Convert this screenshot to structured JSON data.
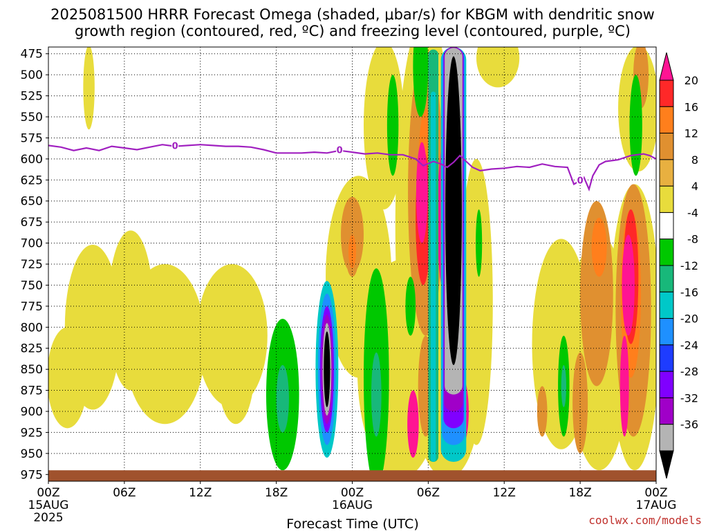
{
  "chart_data": {
    "type": "heatmap",
    "title_line1": "2025081500 HRRR Forecast Omega (shaded, μbar/s) for KBGM with dendritic snow",
    "title_line2": "growth region (contoured, red, ºC) and freezing level (contoured, purple, ºC)",
    "xlabel": "Forecast Time (UTC)",
    "credit": "coolwx.com/models",
    "y_axis": {
      "ticks": [
        475,
        500,
        525,
        550,
        575,
        600,
        625,
        650,
        675,
        700,
        725,
        750,
        775,
        800,
        825,
        850,
        875,
        900,
        925,
        950,
        975
      ],
      "range": [
        467,
        983
      ],
      "units": "hPa"
    },
    "x_axis": {
      "range_hours": [
        0,
        48
      ],
      "ticks": [
        {
          "hour": 0,
          "line1": "00Z",
          "line2": "15AUG",
          "line3": "2025"
        },
        {
          "hour": 6,
          "line1": "06Z"
        },
        {
          "hour": 12,
          "line1": "12Z"
        },
        {
          "hour": 18,
          "line1": "18Z"
        },
        {
          "hour": 24,
          "line1": "00Z",
          "line2": "16AUG"
        },
        {
          "hour": 30,
          "line1": "06Z"
        },
        {
          "hour": 36,
          "line1": "12Z"
        },
        {
          "hour": 42,
          "line1": "18Z"
        },
        {
          "hour": 48,
          "line1": "00Z",
          "line2": "17AUG"
        }
      ]
    },
    "colorbar": {
      "labels": [
        "20",
        "16",
        "12",
        "8",
        "4",
        "-4",
        "-8",
        "-12",
        "-16",
        "-20",
        "-24",
        "-28",
        "-32",
        "-36"
      ],
      "colors": [
        "#ff1493",
        "#ff2828",
        "#ff7f1c",
        "#e09030",
        "#e8b040",
        "#e8dc3c",
        "#ffffff",
        "#00c800",
        "#18b87a",
        "#00c8c8",
        "#1e90ff",
        "#1e3cff",
        "#8000ff",
        "#a000c8",
        "#b4b4b4",
        "#000000"
      ]
    },
    "freezing_level": {
      "label": "0",
      "label_hours": [
        10,
        23,
        42
      ],
      "points": [
        [
          0,
          584
        ],
        [
          1,
          586
        ],
        [
          2,
          590
        ],
        [
          3,
          587
        ],
        [
          4,
          590
        ],
        [
          5,
          585
        ],
        [
          6,
          587
        ],
        [
          7,
          589
        ],
        [
          8,
          586
        ],
        [
          9,
          583
        ],
        [
          10,
          585
        ],
        [
          11,
          584
        ],
        [
          12,
          583
        ],
        [
          13,
          584
        ],
        [
          14,
          585
        ],
        [
          15,
          585
        ],
        [
          16,
          586
        ],
        [
          17,
          589
        ],
        [
          18,
          593
        ],
        [
          19,
          593
        ],
        [
          20,
          593
        ],
        [
          21,
          592
        ],
        [
          22,
          593
        ],
        [
          23,
          590
        ],
        [
          24,
          592
        ],
        [
          25,
          594
        ],
        [
          26,
          593
        ],
        [
          27,
          595
        ],
        [
          28,
          595
        ],
        [
          29,
          600
        ],
        [
          29.6,
          608
        ],
        [
          30.4,
          603
        ],
        [
          31,
          606
        ],
        [
          31.5,
          610
        ],
        [
          32,
          604
        ],
        [
          32.5,
          596
        ],
        [
          33,
          603
        ],
        [
          33.5,
          610
        ],
        [
          34.1,
          614
        ],
        [
          35,
          612
        ],
        [
          36,
          611
        ],
        [
          37,
          609
        ],
        [
          38,
          610
        ],
        [
          39,
          606
        ],
        [
          40,
          609
        ],
        [
          41,
          610
        ],
        [
          41.5,
          630
        ],
        [
          42,
          626
        ],
        [
          42.3,
          622
        ],
        [
          42.7,
          636
        ],
        [
          43,
          620
        ],
        [
          43.5,
          607
        ],
        [
          44,
          603
        ],
        [
          45,
          601
        ],
        [
          46,
          596
        ],
        [
          47,
          594
        ],
        [
          47.5,
          596
        ],
        [
          48,
          600
        ]
      ]
    },
    "omega_regions": [
      {
        "level": 4,
        "cx": 3.5,
        "cy": 800,
        "rx": 2.2,
        "ry": 98
      },
      {
        "level": 4,
        "cx": 9.2,
        "cy": 820,
        "rx": 3.2,
        "ry": 95
      },
      {
        "level": 4,
        "cx": 14.5,
        "cy": 810,
        "rx": 2.8,
        "ry": 85
      },
      {
        "level": 4,
        "cx": 1.5,
        "cy": 860,
        "rx": 1.6,
        "ry": 60
      },
      {
        "level": 4,
        "cx": 6.5,
        "cy": 780,
        "rx": 1.8,
        "ry": 95
      },
      {
        "level": 4,
        "cx": 3.2,
        "cy": 515,
        "rx": 0.45,
        "ry": 50
      },
      {
        "level": 4,
        "cx": 14.8,
        "cy": 845,
        "rx": 1.5,
        "ry": 70
      },
      {
        "level": 4,
        "cx": 24.5,
        "cy": 740,
        "rx": 2.6,
        "ry": 120
      },
      {
        "level": 4,
        "cx": 26.5,
        "cy": 560,
        "rx": 1.6,
        "ry": 100
      },
      {
        "level": 4,
        "cx": 27.8,
        "cy": 850,
        "rx": 3.4,
        "ry": 130
      },
      {
        "level": 4,
        "cx": 29.8,
        "cy": 680,
        "rx": 2.4,
        "ry": 250
      },
      {
        "level": 4,
        "cx": 33.8,
        "cy": 770,
        "rx": 1.3,
        "ry": 170
      },
      {
        "level": 4,
        "cx": 31.5,
        "cy": 880,
        "rx": 2.6,
        "ry": 100
      },
      {
        "level": 4,
        "cx": 35.5,
        "cy": 480,
        "rx": 1.7,
        "ry": 35
      },
      {
        "level": 4,
        "cx": 40.5,
        "cy": 820,
        "rx": 2.3,
        "ry": 125
      },
      {
        "level": 4,
        "cx": 43.5,
        "cy": 830,
        "rx": 2.4,
        "ry": 140
      },
      {
        "level": 4,
        "cx": 46.3,
        "cy": 800,
        "rx": 2.0,
        "ry": 170
      },
      {
        "level": 4,
        "cx": 46.6,
        "cy": 540,
        "rx": 1.6,
        "ry": 75
      },
      {
        "level": 4,
        "cx": 44.5,
        "cy": 800,
        "rx": 3.5,
        "ry": 80
      },
      {
        "level": 8,
        "cx": 24.0,
        "cy": 690,
        "rx": 0.9,
        "ry": 45
      },
      {
        "level": 8,
        "cx": 24.0,
        "cy": 715,
        "rx": 0.5,
        "ry": 25
      },
      {
        "level": 8,
        "cx": 29.8,
        "cy": 640,
        "rx": 1.4,
        "ry": 170
      },
      {
        "level": 8,
        "cx": 29.8,
        "cy": 870,
        "rx": 0.6,
        "ry": 60
      },
      {
        "level": 8,
        "cx": 31.8,
        "cy": 890,
        "rx": 0.8,
        "ry": 45
      },
      {
        "level": 8,
        "cx": 43.3,
        "cy": 760,
        "rx": 1.3,
        "ry": 110
      },
      {
        "level": 8,
        "cx": 46.2,
        "cy": 780,
        "rx": 1.4,
        "ry": 150
      },
      {
        "level": 8,
        "cx": 46.8,
        "cy": 500,
        "rx": 0.6,
        "ry": 40
      },
      {
        "level": 8,
        "cx": 42.0,
        "cy": 890,
        "rx": 0.6,
        "ry": 60
      },
      {
        "level": 8,
        "cx": 39.0,
        "cy": 900,
        "rx": 0.4,
        "ry": 30
      },
      {
        "level": 12,
        "cx": 24.0,
        "cy": 710,
        "rx": 0.3,
        "ry": 20
      },
      {
        "level": 12,
        "cx": 29.8,
        "cy": 620,
        "rx": 0.6,
        "ry": 80
      },
      {
        "level": 12,
        "cx": 43.5,
        "cy": 705,
        "rx": 0.6,
        "ry": 35
      },
      {
        "level": 12,
        "cx": 46.0,
        "cy": 760,
        "rx": 0.8,
        "ry": 100
      },
      {
        "level": 16,
        "cx": 29.6,
        "cy": 670,
        "rx": 0.6,
        "ry": 80
      },
      {
        "level": 16,
        "cx": 46.0,
        "cy": 740,
        "rx": 0.6,
        "ry": 80
      },
      {
        "level": 20,
        "cx": 29.5,
        "cy": 640,
        "rx": 0.45,
        "ry": 60
      },
      {
        "level": 20,
        "cx": 31.5,
        "cy": 670,
        "rx": 0.8,
        "ry": 100
      },
      {
        "level": 20,
        "cx": 45.8,
        "cy": 750,
        "rx": 0.5,
        "ry": 60
      },
      {
        "level": 20,
        "cx": 32.5,
        "cy": 900,
        "rx": 0.7,
        "ry": 45
      },
      {
        "level": 20,
        "cx": 28.8,
        "cy": 915,
        "rx": 0.45,
        "ry": 40
      },
      {
        "level": 20,
        "cx": 45.5,
        "cy": 870,
        "rx": 0.35,
        "ry": 60
      },
      {
        "level": -4,
        "cx": 18.5,
        "cy": 880,
        "rx": 1.3,
        "ry": 90
      },
      {
        "level": -4,
        "cx": 25.9,
        "cy": 860,
        "rx": 1.0,
        "ry": 130
      },
      {
        "level": -4,
        "cx": 27.2,
        "cy": 560,
        "rx": 0.45,
        "ry": 60
      },
      {
        "level": -4,
        "cx": 29.4,
        "cy": 490,
        "rx": 0.6,
        "ry": 60
      },
      {
        "level": -4,
        "cx": 28.6,
        "cy": 775,
        "rx": 0.4,
        "ry": 35
      },
      {
        "level": -4,
        "cx": 34.0,
        "cy": 700,
        "rx": 0.25,
        "ry": 40
      },
      {
        "level": -4,
        "cx": 40.7,
        "cy": 870,
        "rx": 0.45,
        "ry": 60
      },
      {
        "level": -4,
        "cx": 46.4,
        "cy": 560,
        "rx": 0.5,
        "ry": 60
      },
      {
        "level": -8,
        "cx": 18.5,
        "cy": 885,
        "rx": 0.5,
        "ry": 40
      },
      {
        "level": -8,
        "cx": 25.9,
        "cy": 880,
        "rx": 0.4,
        "ry": 50
      },
      {
        "level": -8,
        "cx": 40.7,
        "cy": 870,
        "rx": 0.2,
        "ry": 25
      },
      {
        "level": -12,
        "cx": 22.0,
        "cy": 850,
        "rx": 0.9,
        "ry": 105
      },
      {
        "level": -16,
        "cx": 22.0,
        "cy": 850,
        "rx": 0.7,
        "ry": 90
      },
      {
        "level": -24,
        "cx": 22.0,
        "cy": 850,
        "rx": 0.55,
        "ry": 75
      },
      {
        "level": -28,
        "cx": 22.0,
        "cy": 850,
        "rx": 0.45,
        "ry": 65
      },
      {
        "level": -32,
        "cx": 22.0,
        "cy": 850,
        "rx": 0.35,
        "ry": 55
      },
      {
        "level": -36,
        "cx": 22.0,
        "cy": 850,
        "rx": 0.25,
        "ry": 45
      }
    ],
    "omega_bars": [
      {
        "level": -8,
        "h0": 30.0,
        "h1": 30.8,
        "p0": 470,
        "p1": 960
      },
      {
        "level": -12,
        "h0": 30.2,
        "h1": 30.6,
        "p0": 520,
        "p1": 960
      },
      {
        "level": -12,
        "h0": 31.0,
        "h1": 33.0,
        "p0": 467,
        "p1": 960
      },
      {
        "level": -16,
        "h0": 31.1,
        "h1": 32.9,
        "p0": 467,
        "p1": 940
      },
      {
        "level": -24,
        "h0": 31.2,
        "h1": 32.8,
        "p0": 467,
        "p1": 920
      },
      {
        "level": -28,
        "h0": 31.25,
        "h1": 32.75,
        "p0": 467,
        "p1": 900
      },
      {
        "level": -32,
        "h0": 31.3,
        "h1": 32.7,
        "p0": 468,
        "p1": 880
      }
    ],
    "omega_core": {
      "level": -36,
      "h0": 31.35,
      "h1": 32.65,
      "p0": 478,
      "p1": 845
    },
    "terrain": {
      "p_top": 970,
      "color": "#a0522d"
    }
  }
}
